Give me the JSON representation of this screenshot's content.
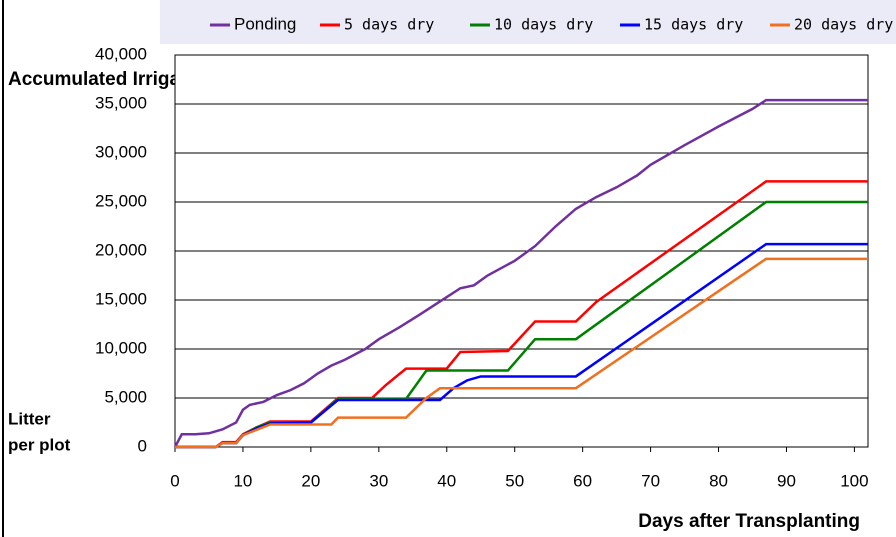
{
  "chart_data": {
    "type": "line",
    "y_label_top": "Accumulated Irrigated Water",
    "y_label_bottom": [
      "Litter",
      "per plot"
    ],
    "x_label": "Days after Transplanting",
    "xlim": [
      0,
      102
    ],
    "ylim": [
      0,
      40000
    ],
    "xticks": [
      0,
      10,
      20,
      30,
      40,
      50,
      60,
      70,
      80,
      90,
      100
    ],
    "yticks": [
      0,
      {
        "value": 5000,
        "label": "5,000"
      },
      {
        "value": 10000,
        "label": "10,000"
      },
      {
        "value": 15000,
        "label": "15,000"
      },
      {
        "value": 20000,
        "label": "20,000"
      },
      {
        "value": 25000,
        "label": "25,000"
      },
      {
        "value": 30000,
        "label": "30,000"
      },
      {
        "value": 35000,
        "label": "35,000"
      },
      {
        "value": 40000,
        "label": "40,000"
      }
    ],
    "grid": true,
    "series": [
      {
        "name": "Ponding",
        "color": "#7030a0",
        "x": [
          0,
          1,
          3,
          5,
          7,
          9,
          10,
          11,
          13,
          15,
          17,
          19,
          21,
          23,
          25,
          28,
          30,
          33,
          36,
          40,
          42,
          44,
          46,
          50,
          53,
          56,
          59,
          62,
          65,
          68,
          70,
          75,
          80,
          85,
          87,
          102
        ],
        "values": [
          0,
          1300,
          1300,
          1400,
          1800,
          2500,
          3800,
          4300,
          4600,
          5300,
          5800,
          6500,
          7500,
          8300,
          8900,
          10000,
          11000,
          12200,
          13500,
          15300,
          16200,
          16500,
          17500,
          19000,
          20500,
          22500,
          24300,
          25500,
          26500,
          27700,
          28800,
          30800,
          32700,
          34500,
          35400,
          35400
        ]
      },
      {
        "name": "5 days dry",
        "color": "#ff0000",
        "x": [
          0,
          6,
          7,
          9,
          10,
          12,
          14,
          20,
          22,
          24,
          29,
          31,
          34,
          40,
          42,
          49,
          53,
          59,
          62,
          87,
          102
        ],
        "values": [
          0,
          0,
          500,
          500,
          1300,
          2000,
          2600,
          2600,
          3800,
          5000,
          5000,
          6300,
          8000,
          8000,
          9700,
          9800,
          12800,
          12800,
          14800,
          27100,
          27100
        ]
      },
      {
        "name": "10 days dry",
        "color": "#008000",
        "x": [
          0,
          6,
          7,
          9,
          10,
          12,
          14,
          20,
          24,
          34,
          37,
          49,
          53,
          59,
          87,
          102
        ],
        "values": [
          0,
          0,
          400,
          400,
          1200,
          2000,
          2500,
          2500,
          4900,
          4900,
          7800,
          7800,
          11000,
          11000,
          25000,
          25000
        ]
      },
      {
        "name": "15 days dry",
        "color": "#0000ff",
        "x": [
          0,
          6,
          7,
          9,
          10,
          12,
          14,
          20,
          24,
          39,
          41,
          43,
          45,
          59,
          87,
          102
        ],
        "values": [
          0,
          0,
          400,
          400,
          1200,
          1900,
          2400,
          2500,
          4800,
          4800,
          6000,
          6800,
          7200,
          7200,
          20700,
          20700
        ]
      },
      {
        "name": "20 days dry",
        "color": "#f07020",
        "x": [
          0,
          6,
          7,
          9,
          10,
          14,
          23,
          24,
          34,
          37,
          39,
          59,
          87,
          102
        ],
        "values": [
          0,
          0,
          400,
          400,
          1200,
          2300,
          2300,
          3000,
          3000,
          5000,
          6000,
          6000,
          19200,
          19200
        ]
      }
    ]
  }
}
